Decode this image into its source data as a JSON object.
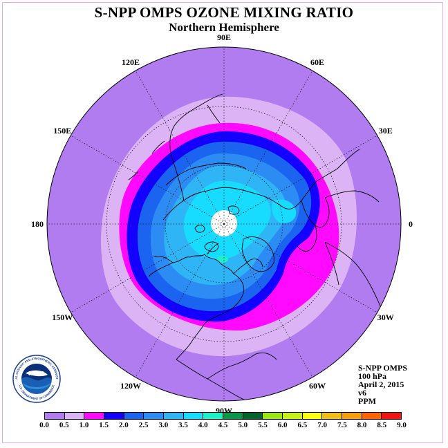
{
  "header": {
    "title": "S-NPP OMPS OZONE MIXING RATIO",
    "subtitle": "Northern Hemisphere"
  },
  "map": {
    "projection": "north-polar-stereographic",
    "longitude_labels": [
      {
        "label": "90E",
        "lon": 90
      },
      {
        "label": "60E",
        "lon": 60
      },
      {
        "label": "30E",
        "lon": 30
      },
      {
        "label": "0",
        "lon": 0
      },
      {
        "label": "30W",
        "lon": -30
      },
      {
        "label": "60W",
        "lon": -60
      },
      {
        "label": "90W",
        "lon": -90
      },
      {
        "label": "120W",
        "lon": -120
      },
      {
        "label": "150W",
        "lon": -150
      },
      {
        "label": "180",
        "lon": 180
      },
      {
        "label": "150E",
        "lon": 150
      },
      {
        "label": "120E",
        "lon": 120
      }
    ],
    "field_colors": {
      "outer": "#b07cf0",
      "band_0_5": "#dcb4f5",
      "band_1_0": "#ff0aff",
      "band_1_5": "#1400ff",
      "band_2_0": "#1a64f0",
      "band_2_5": "#2c8cf4",
      "band_3_0": "#2fb4f6",
      "band_3_5": "#18dcff",
      "band_4_0": "#1ef0c8",
      "polar_gap": "#ffffff"
    }
  },
  "info": {
    "instrument": "S-NPP OMPS",
    "level": "100 hPa",
    "date": "April 2, 2015",
    "version": "v6",
    "units": "PPM"
  },
  "legend": {
    "ticks": [
      "0.0",
      "0.5",
      "1.0",
      "1.5",
      "2.0",
      "2.5",
      "3.0",
      "3.5",
      "4.0",
      "4.5",
      "5.0",
      "5.5",
      "6.0",
      "6.5",
      "7.0",
      "7.5",
      "8.0",
      "8.5",
      "9.0"
    ],
    "colors": [
      "#b07cf0",
      "#dcb4f5",
      "#ff0aff",
      "#1400ff",
      "#1a64f0",
      "#2c8cf4",
      "#2fb4f6",
      "#18dcff",
      "#1ef0c8",
      "#0a9646",
      "#04642e",
      "#9be614",
      "#c8f014",
      "#ffff14",
      "#f0be14",
      "#f5a00a",
      "#ff6400",
      "#f01414",
      "#965a3c"
    ]
  },
  "logo": {
    "text": "NOAA",
    "ring_text": "NATIONAL OCEANIC AND ATMOSPHERIC ADMINISTRATION",
    "ring_text_bottom": "U.S. DEPARTMENT OF COMMERCE"
  }
}
